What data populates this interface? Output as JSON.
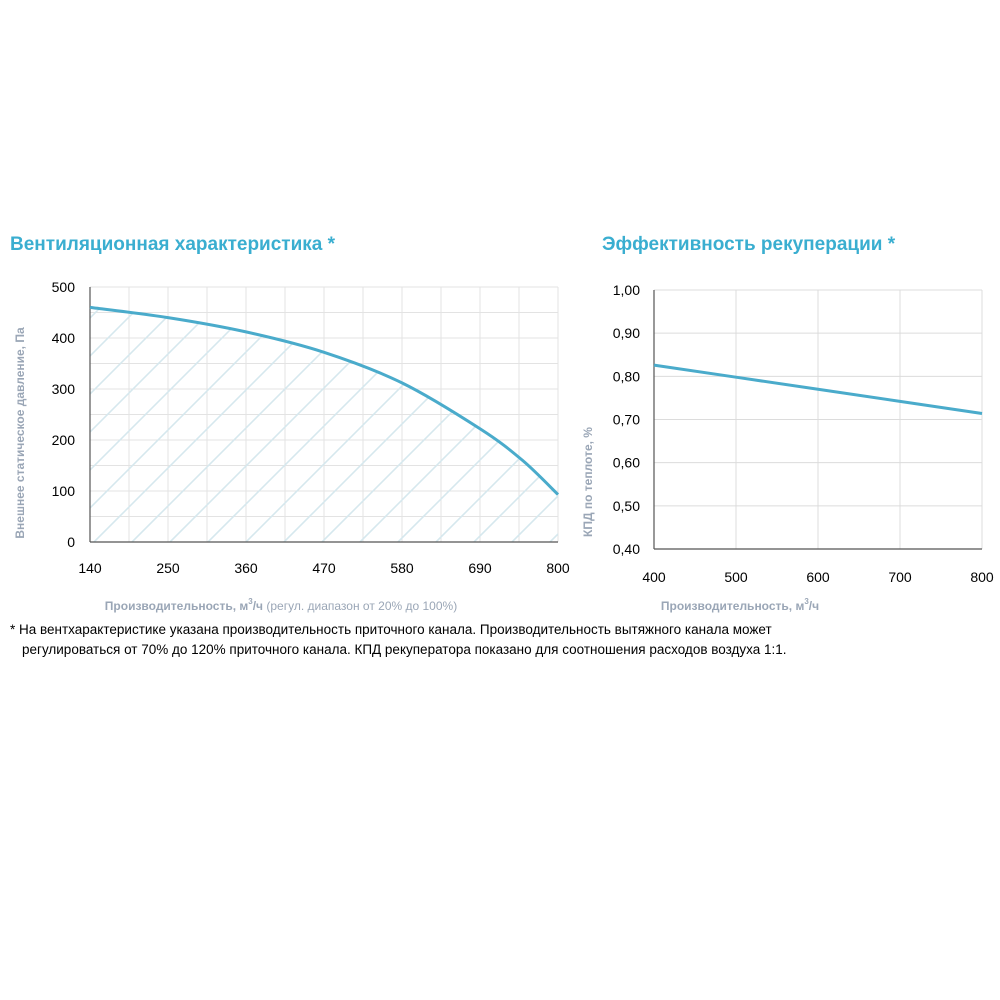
{
  "chart_data": [
    {
      "type": "line",
      "title": "Вентиляционная характеристика *",
      "ylabel": "Внешнее статическое давление, Па",
      "xlabel_main": "Производительность, м",
      "xlabel_sup": "3",
      "xlabel_unit": "/ч",
      "xlabel_note": " (регул. диапазон от 20% до 100%)",
      "xlim": [
        140,
        800
      ],
      "ylim": [
        0,
        500
      ],
      "x_ticks": [
        "140",
        "250",
        "360",
        "470",
        "580",
        "690",
        "800"
      ],
      "y_ticks": [
        "0",
        "100",
        "200",
        "300",
        "400",
        "500"
      ],
      "grid": true,
      "hatched_area_under_curve": true,
      "series": [
        {
          "x": [
            140,
            250,
            360,
            470,
            580,
            690,
            750,
            800
          ],
          "y": [
            460,
            440,
            412,
            372,
            312,
            222,
            160,
            93
          ],
          "color": "#4aabcb"
        }
      ]
    },
    {
      "type": "line",
      "title": "Эффективность рекуперации *",
      "ylabel": "КПД по теплоте, %",
      "xlabel_main": "Производительность, м",
      "xlabel_sup": "3",
      "xlabel_unit": "/ч",
      "xlim": [
        400,
        800
      ],
      "ylim": [
        0.4,
        1.0
      ],
      "x_ticks": [
        "400",
        "500",
        "600",
        "700",
        "800"
      ],
      "y_ticks": [
        "0,40",
        "0,50",
        "0,60",
        "0,70",
        "0,80",
        "0,90",
        "1,00"
      ],
      "grid": true,
      "series": [
        {
          "x": [
            400,
            500,
            600,
            700,
            800
          ],
          "y": [
            0.826,
            0.798,
            0.77,
            0.742,
            0.714
          ],
          "color": "#4aabcb"
        }
      ]
    }
  ],
  "footnote": {
    "line1": "* На вентхарактеристике указана производительность приточного канала. Производительность вытяжного канала может",
    "line2": "регулироваться от 70% до 120% приточного канала. КПД рекуператора показано для соотношения расходов воздуха 1:1."
  }
}
